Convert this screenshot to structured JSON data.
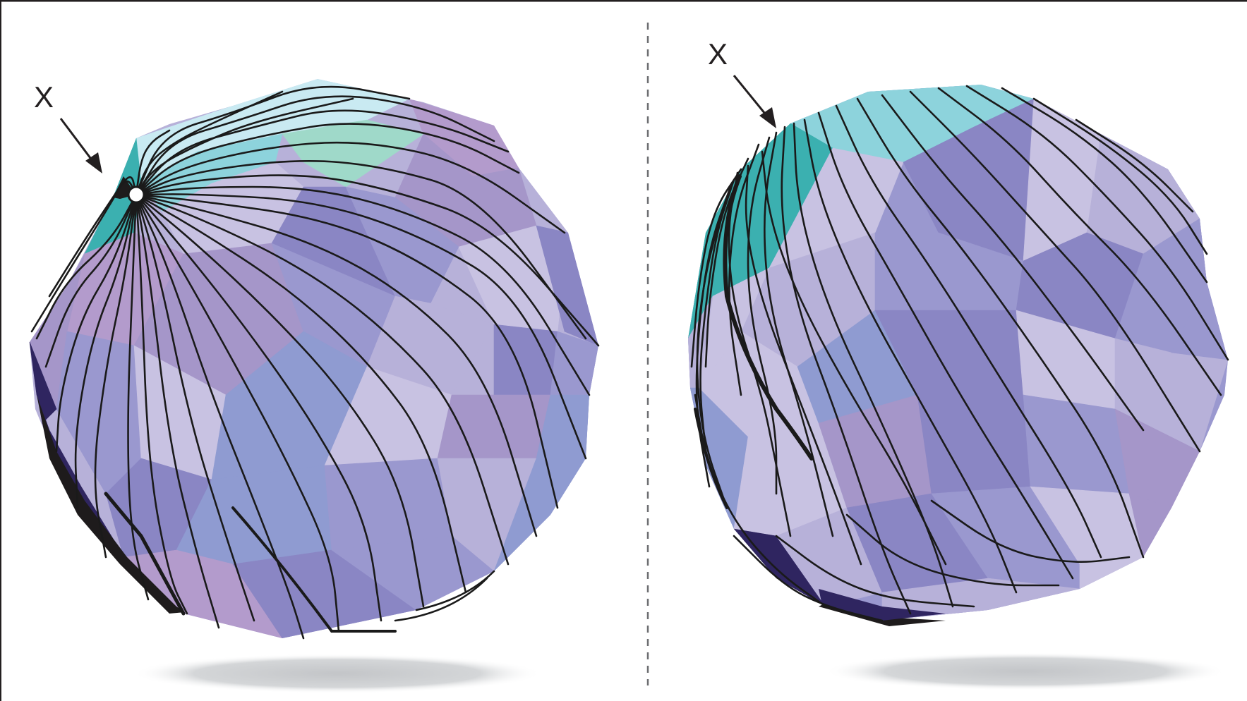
{
  "panels": [
    {
      "id": "left",
      "marker_label": "X",
      "marker_style": "pole-point"
    },
    {
      "id": "right",
      "marker_label": "X",
      "marker_style": "edge-vertex"
    }
  ],
  "colors": {
    "frame": "#231f20",
    "divider": "#6d6e71",
    "streamline": "#1a1a1a",
    "shadow": "#c9cbcd",
    "lavender": "#b7b1d9",
    "periwinkle": "#9a98cf",
    "violet": "#8a86c4",
    "lilac": "#a596c9",
    "mauve": "#b39bcc",
    "pale": "#c8c2e2",
    "slate_blue": "#8f9bd1",
    "indigo": "#2f2560",
    "teal": "#3bb0b0",
    "cyan": "#8dd3dc",
    "ice": "#c9eaf2",
    "mint": "#9fd9c9"
  }
}
